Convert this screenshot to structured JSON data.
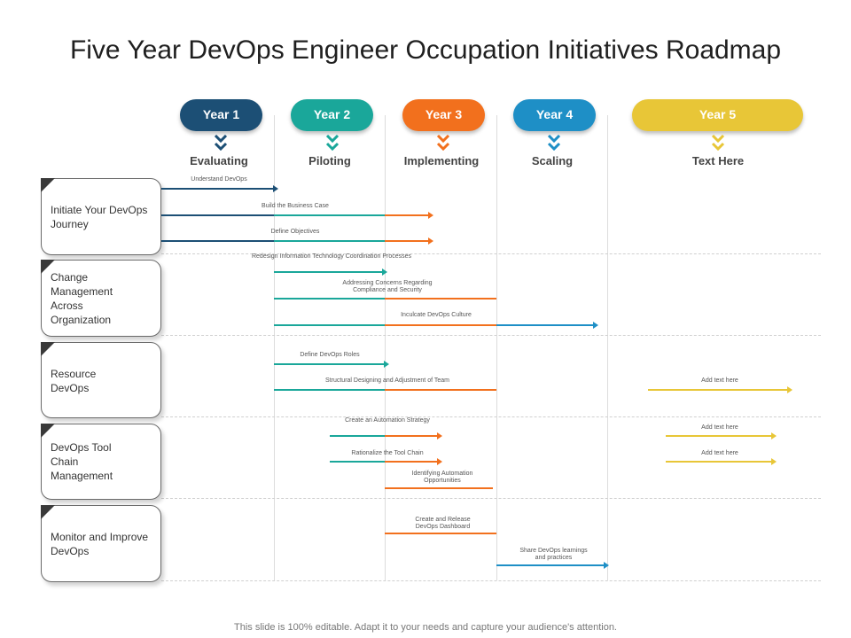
{
  "title": "Five Year DevOps Engineer Occupation Initiatives Roadmap",
  "colors": {
    "y1": "#1c4f75",
    "y2": "#1aa79a",
    "y3": "#f2701d",
    "y4": "#1e8fc6",
    "y5": "#e8c637"
  },
  "years": [
    {
      "label": "Year 1",
      "stage": "Evaluating"
    },
    {
      "label": "Year 2",
      "stage": "Piloting"
    },
    {
      "label": "Year 3",
      "stage": "Implementing"
    },
    {
      "label": "Year 4",
      "stage": "Scaling"
    },
    {
      "label": "Year 5",
      "stage": "Text Here"
    }
  ],
  "rows": [
    {
      "label": "Initiate Your DevOps Journey"
    },
    {
      "label": "Change Management Across Organization"
    },
    {
      "label": "Resource DevOps"
    },
    {
      "label": "DevOps Tool Chain Management"
    },
    {
      "label": "Monitor and Improve DevOps"
    }
  ],
  "tasks": [
    "Understand DevOps",
    "Build the Business Case",
    "Define Objectives",
    "Redesign Information Technology Coordination Processes",
    "Addressing Concerns Regarding Compliance and Security",
    "Inculcate DevOps Culture",
    "Define DevOps Roles",
    "Structural Designing and Adjustment of Team",
    "Add text here",
    "Create an Automation Strategy",
    "Add text here",
    "Rationalize the Tool Chain",
    "Add text here",
    "Identifying Automation Opportunities",
    "Create and Release DevOps Dashboard",
    "Share DevOps learnings and practices"
  ],
  "footer": "This slide is 100% editable. Adapt it to your needs and capture your audience's attention."
}
